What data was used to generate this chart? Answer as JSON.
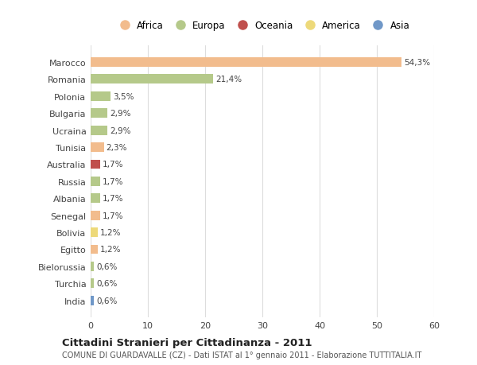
{
  "categories": [
    "Marocco",
    "Romania",
    "Polonia",
    "Bulgaria",
    "Ucraina",
    "Tunisia",
    "Australia",
    "Russia",
    "Albania",
    "Senegal",
    "Bolivia",
    "Egitto",
    "Bielorussia",
    "Turchia",
    "India"
  ],
  "values": [
    54.3,
    21.4,
    3.5,
    2.9,
    2.9,
    2.3,
    1.7,
    1.7,
    1.7,
    1.7,
    1.2,
    1.2,
    0.6,
    0.6,
    0.6
  ],
  "labels": [
    "54,3%",
    "21,4%",
    "3,5%",
    "2,9%",
    "2,9%",
    "2,3%",
    "1,7%",
    "1,7%",
    "1,7%",
    "1,7%",
    "1,2%",
    "1,2%",
    "0,6%",
    "0,6%",
    "0,6%"
  ],
  "colors": [
    "#F2BC8D",
    "#B5C98A",
    "#B5C98A",
    "#B5C98A",
    "#B5C98A",
    "#F2BC8D",
    "#C0504D",
    "#B5C98A",
    "#B5C98A",
    "#F2BC8D",
    "#EDD97A",
    "#F2BC8D",
    "#B5C98A",
    "#B5C98A",
    "#7098C8"
  ],
  "legend_items": [
    {
      "label": "Africa",
      "color": "#F2BC8D"
    },
    {
      "label": "Europa",
      "color": "#B5C98A"
    },
    {
      "label": "Oceania",
      "color": "#C0504D"
    },
    {
      "label": "America",
      "color": "#EDD97A"
    },
    {
      "label": "Asia",
      "color": "#7098C8"
    }
  ],
  "xlim": [
    0,
    60
  ],
  "xticks": [
    0,
    10,
    20,
    30,
    40,
    50,
    60
  ],
  "title": "Cittadini Stranieri per Cittadinanza - 2011",
  "subtitle": "COMUNE DI GUARDAVALLE (CZ) - Dati ISTAT al 1° gennaio 2011 - Elaborazione TUTTITALIA.IT",
  "bg_color": "#FFFFFF",
  "grid_color": "#DDDDDD",
  "bar_height": 0.55
}
